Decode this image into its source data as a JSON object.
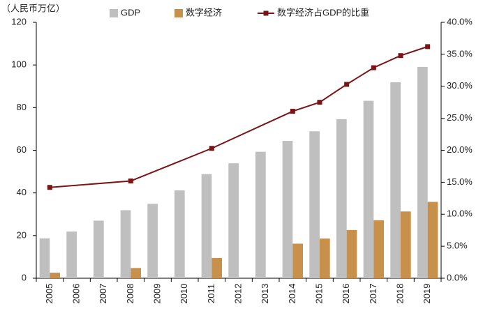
{
  "chart_data": {
    "type": "bar_line",
    "unit_label": "（人民币万亿）",
    "categories": [
      "2005",
      "2006",
      "2007",
      "2008",
      "2009",
      "2010",
      "2011",
      "2012",
      "2013",
      "2014",
      "2015",
      "2016",
      "2017",
      "2018",
      "2019"
    ],
    "series": [
      {
        "name": "GDP",
        "color": "#bfbfbf",
        "type": "bar",
        "values": [
          18.7,
          21.9,
          27.0,
          31.9,
          34.9,
          41.2,
          48.8,
          53.9,
          59.3,
          64.4,
          68.9,
          74.6,
          83.2,
          91.9,
          99.1
        ]
      },
      {
        "name": "数字经济",
        "color": "#c8914b",
        "type": "bar",
        "values": [
          2.6,
          null,
          null,
          4.8,
          null,
          null,
          9.5,
          null,
          null,
          16.2,
          18.6,
          22.6,
          27.2,
          31.3,
          35.8
        ]
      },
      {
        "name": "数字经济占GDP的比重",
        "color": "#7b1416",
        "type": "line",
        "axis": "y2",
        "x": [
          "2005",
          "2008",
          "2011",
          "2014",
          "2015",
          "2016",
          "2017",
          "2018",
          "2019"
        ],
        "values": [
          14.2,
          15.2,
          20.3,
          26.1,
          27.5,
          30.3,
          32.9,
          34.8,
          36.2
        ]
      }
    ],
    "ylim": [
      0,
      120
    ],
    "yticks": [
      0,
      20,
      40,
      60,
      80,
      100,
      120
    ],
    "y2lim": [
      0,
      40
    ],
    "y2ticks": [
      {
        "value": 0,
        "label": "0.0%"
      },
      {
        "value": 5,
        "label": "5.0%"
      },
      {
        "value": 10,
        "label": "10.0%"
      },
      {
        "value": 15,
        "label": "15.0%"
      },
      {
        "value": 20,
        "label": "20.0%"
      },
      {
        "value": 25,
        "label": "25.0%"
      },
      {
        "value": 30,
        "label": "30.0%"
      },
      {
        "value": 35,
        "label": "35.0%"
      },
      {
        "value": 40,
        "label": "40.0%"
      }
    ]
  }
}
